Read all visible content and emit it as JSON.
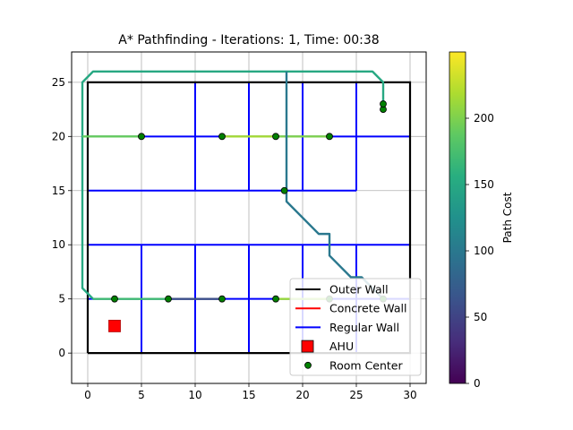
{
  "chart_data": {
    "type": "line",
    "title": "A* Pathfinding - Iterations: 1, Time: 00:38",
    "xlabel": "",
    "ylabel": "",
    "xlim": [
      -1.5,
      31.5
    ],
    "ylim": [
      -2.8,
      27.8
    ],
    "grid": true,
    "x_ticks": [
      0,
      5,
      10,
      15,
      20,
      25,
      30
    ],
    "y_ticks": [
      0,
      5,
      10,
      15,
      20,
      25
    ],
    "outer_wall": [
      [
        0,
        0
      ],
      [
        30,
        0
      ],
      [
        30,
        25
      ],
      [
        0,
        25
      ],
      [
        0,
        0
      ]
    ],
    "regular_walls": [
      [
        [
          0,
          20
        ],
        [
          30,
          20
        ]
      ],
      [
        [
          0,
          15
        ],
        [
          25,
          15
        ]
      ],
      [
        [
          0,
          10
        ],
        [
          30,
          10
        ]
      ],
      [
        [
          0,
          5
        ],
        [
          30,
          5
        ]
      ],
      [
        [
          10,
          15
        ],
        [
          10,
          25
        ]
      ],
      [
        [
          15,
          15
        ],
        [
          15,
          25
        ]
      ],
      [
        [
          20,
          15
        ],
        [
          20,
          25
        ]
      ],
      [
        [
          25,
          15
        ],
        [
          25,
          25
        ]
      ],
      [
        [
          5,
          0
        ],
        [
          5,
          10
        ]
      ],
      [
        [
          10,
          0
        ],
        [
          10,
          10
        ]
      ],
      [
        [
          15,
          0
        ],
        [
          15,
          10
        ]
      ],
      [
        [
          20,
          0
        ],
        [
          20,
          10
        ]
      ],
      [
        [
          25,
          0
        ],
        [
          25,
          10
        ]
      ]
    ],
    "path_segments": [
      {
        "points": [
          [
            0.5,
            5
          ],
          [
            -0.5,
            6
          ],
          [
            -0.5,
            25
          ],
          [
            0.5,
            26
          ],
          [
            26.5,
            26
          ],
          [
            27.5,
            25
          ],
          [
            27.5,
            22.5
          ]
        ],
        "cost": 150
      },
      {
        "points": [
          [
            0.5,
            5
          ],
          [
            4,
            5
          ],
          [
            7.5,
            5
          ]
        ],
        "cost": 170
      },
      {
        "points": [
          [
            7.5,
            5
          ],
          [
            12.5,
            5
          ]
        ],
        "cost": 60
      },
      {
        "points": [
          [
            -0.5,
            20
          ],
          [
            3,
            20
          ],
          [
            5,
            20
          ]
        ],
        "cost": 190
      },
      {
        "points": [
          [
            12.5,
            20
          ],
          [
            15,
            20
          ],
          [
            17.5,
            20
          ]
        ],
        "cost": 215
      },
      {
        "points": [
          [
            17.5,
            20
          ],
          [
            20,
            20
          ],
          [
            22.5,
            20
          ]
        ],
        "cost": 200
      },
      {
        "points": [
          [
            18.5,
            26
          ],
          [
            18.5,
            15
          ],
          [
            18.5,
            14
          ],
          [
            21.5,
            11
          ],
          [
            22.5,
            11
          ],
          [
            22.5,
            9
          ],
          [
            24.5,
            7
          ],
          [
            25.5,
            7
          ],
          [
            26.5,
            6
          ],
          [
            27.5,
            5
          ]
        ],
        "cost": 100
      },
      {
        "points": [
          [
            17.5,
            5
          ],
          [
            20,
            5
          ],
          [
            22.5,
            5
          ]
        ],
        "cost": 210
      }
    ],
    "room_centers": [
      [
        2.5,
        5
      ],
      [
        7.5,
        5
      ],
      [
        12.5,
        5
      ],
      [
        17.5,
        5
      ],
      [
        22.5,
        5
      ],
      [
        27.5,
        5
      ],
      [
        5,
        20
      ],
      [
        12.5,
        20
      ],
      [
        17.5,
        20
      ],
      [
        22.5,
        20
      ],
      [
        18.3,
        15
      ],
      [
        27.5,
        22.5
      ],
      [
        27.5,
        23
      ]
    ],
    "ahu": [
      2.5,
      2.5
    ],
    "legend": {
      "location": "lower right",
      "entries": [
        {
          "label": "Outer Wall",
          "kind": "line",
          "color": "#000000"
        },
        {
          "label": "Concrete Wall",
          "kind": "line",
          "color": "#ff0000"
        },
        {
          "label": "Regular Wall",
          "kind": "line",
          "color": "#0000ff"
        },
        {
          "label": "AHU",
          "kind": "square",
          "color": "#ff0000"
        },
        {
          "label": "Room Center",
          "kind": "dot",
          "color": "#008000"
        }
      ]
    },
    "colorbar": {
      "label": "Path Cost",
      "colormap": "viridis",
      "range": [
        0,
        250
      ],
      "ticks": [
        0,
        50,
        100,
        150,
        200
      ]
    },
    "colors": {
      "outer_wall": "#000000",
      "regular_wall": "#0000ff",
      "grid": "#b0b0b0",
      "ahu": "#ff0000",
      "room_center": "#008000"
    }
  }
}
